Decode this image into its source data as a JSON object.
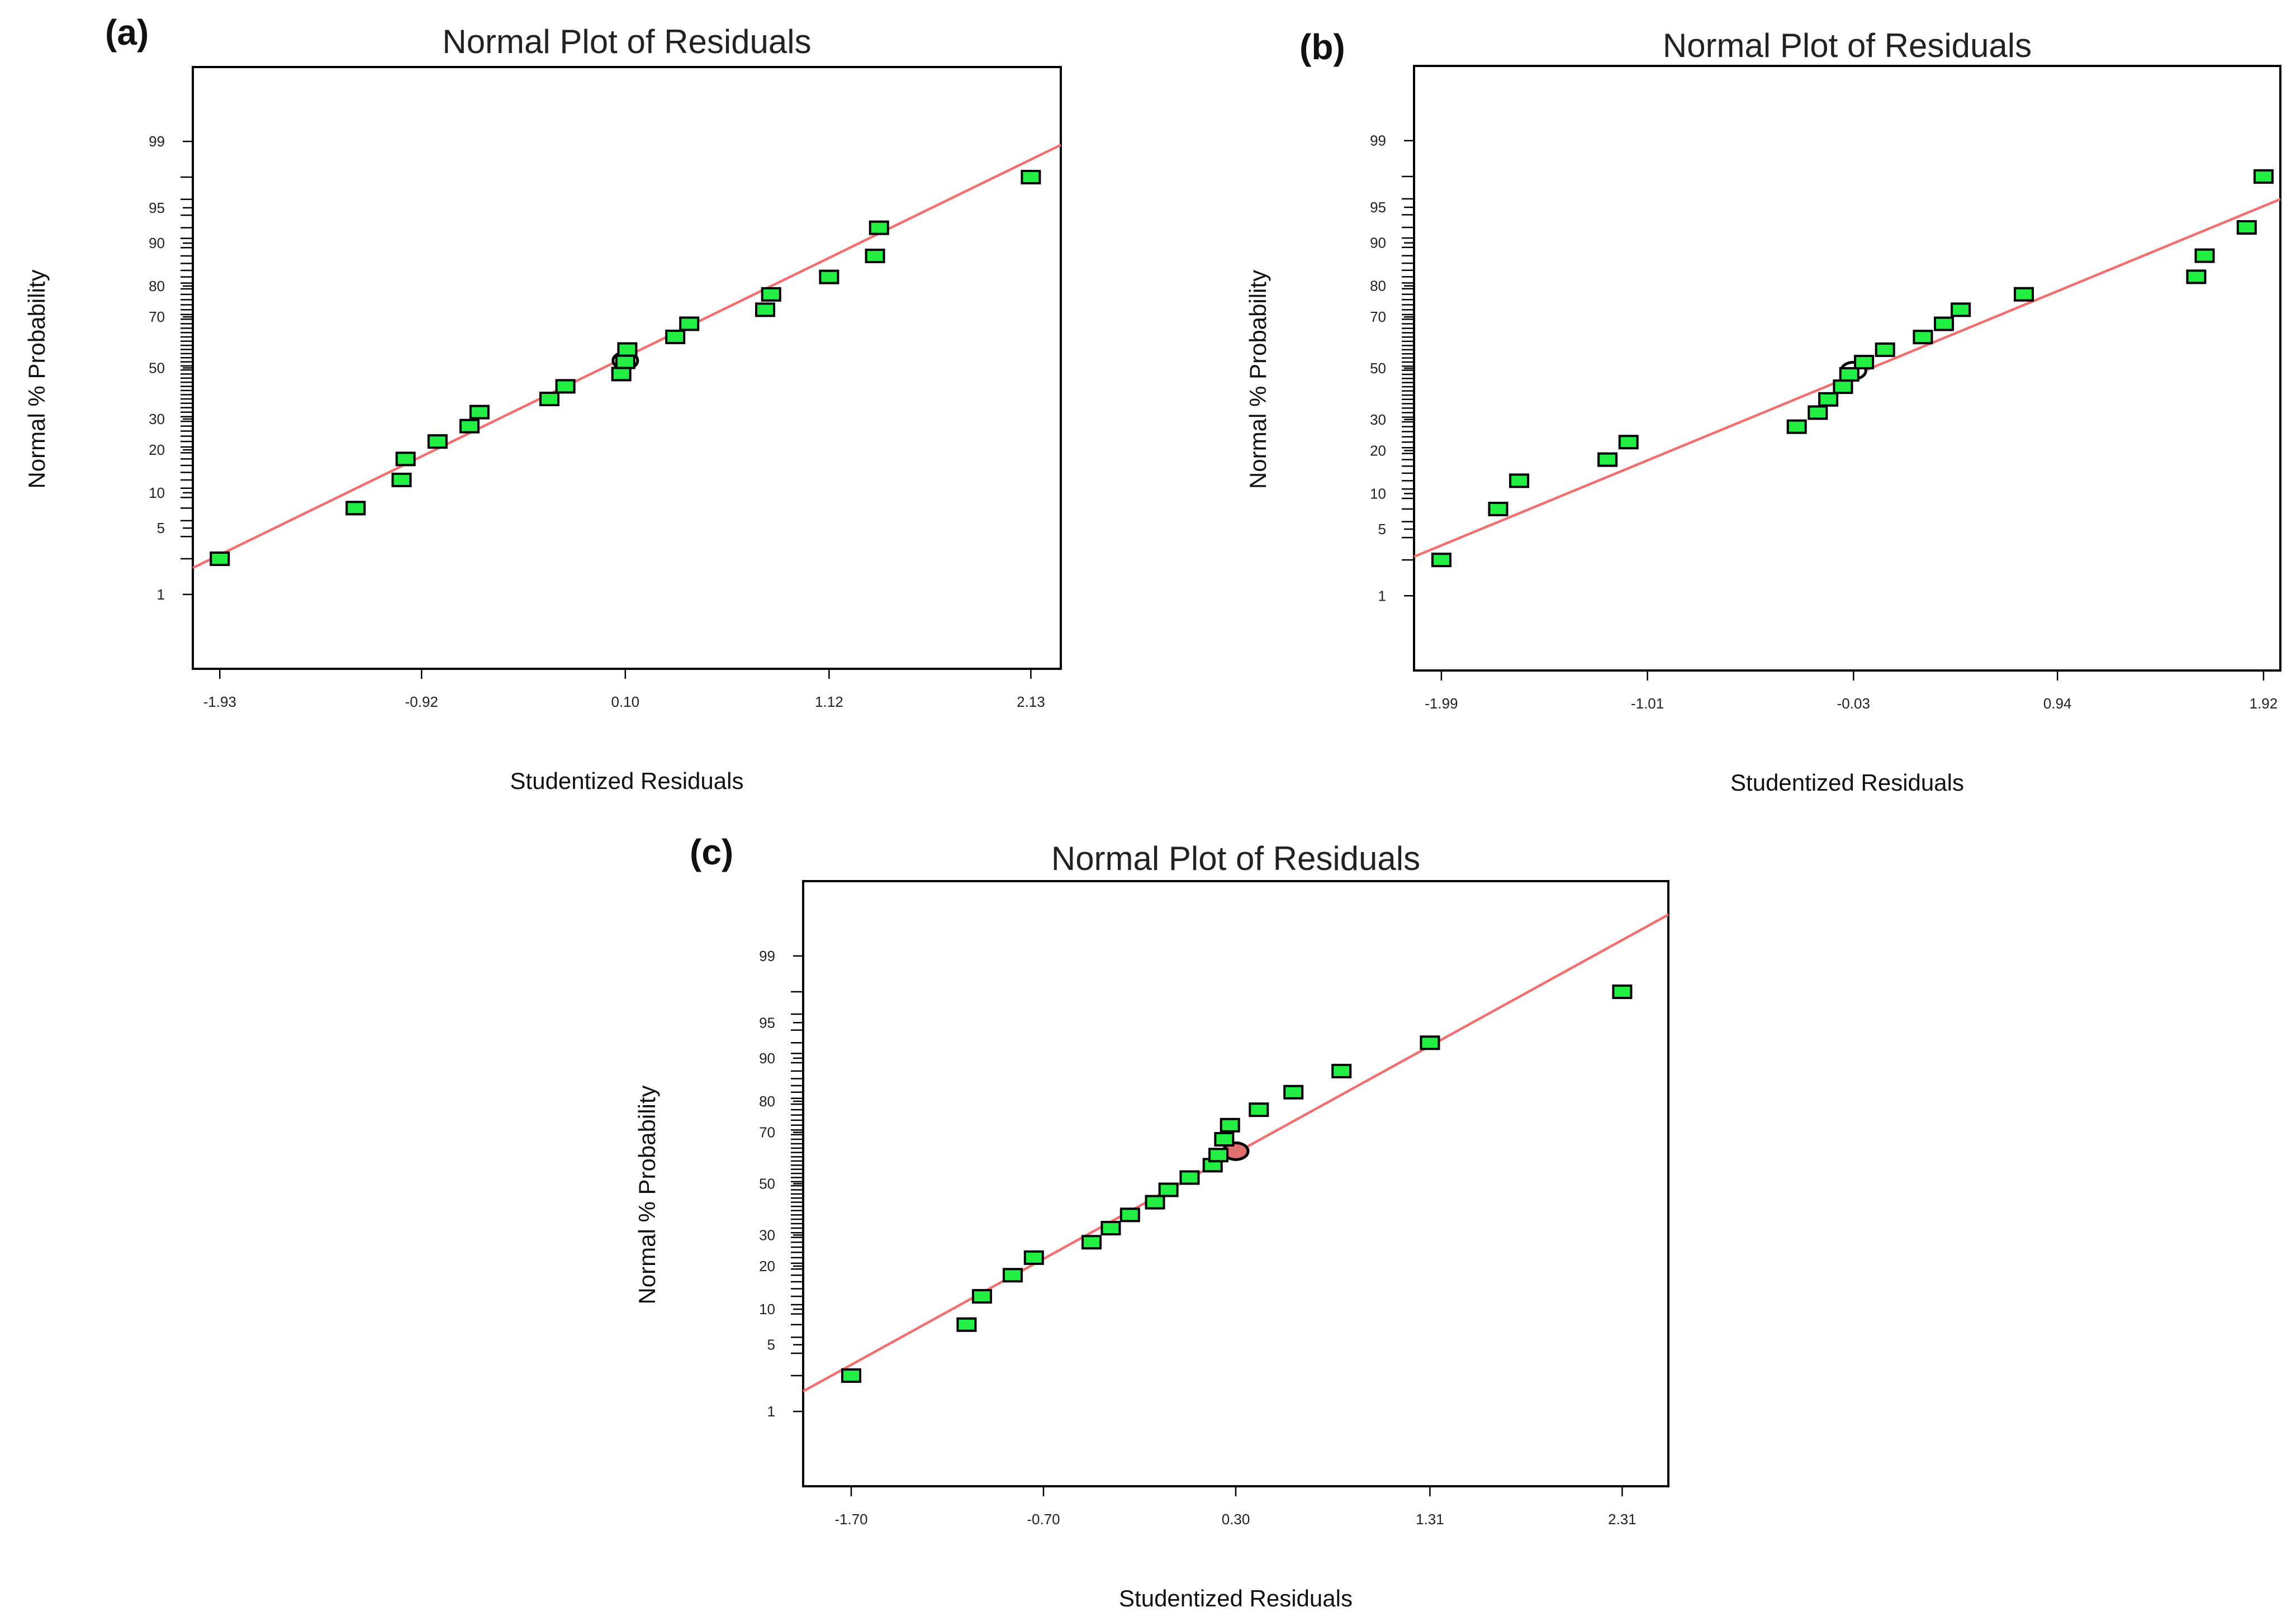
{
  "chart_data": [
    {
      "type": "scatter",
      "panel_label": "(a)",
      "title": "Normal Plot of Residuals",
      "xlabel": "Studentized Residuals",
      "ylabel": "Normal % Probability",
      "x_ticks": [
        "-1.93",
        "-0.92",
        "0.10",
        "1.12",
        "2.13"
      ],
      "x_tick_values": [
        -1.93,
        -0.92,
        0.1,
        1.12,
        2.13
      ],
      "xlim": [
        -2.065,
        2.28
      ],
      "y_ticks": [
        1,
        5,
        10,
        20,
        30,
        50,
        70,
        80,
        90,
        95,
        99
      ],
      "ylim_percent": [
        0.1,
        99.9
      ],
      "fit_line": [
        [
          -2.065,
          2.0
        ],
        [
          2.28,
          98.9
        ]
      ],
      "highlight": {
        "x": 0.1,
        "y": 53,
        "color": "#ffffff"
      },
      "points": [
        {
          "x": -1.93,
          "y": 2.5
        },
        {
          "x": -1.25,
          "y": 7.5
        },
        {
          "x": -1.02,
          "y": 12.5
        },
        {
          "x": -1.0,
          "y": 17.5
        },
        {
          "x": -0.84,
          "y": 22.5
        },
        {
          "x": -0.68,
          "y": 27.5
        },
        {
          "x": -0.63,
          "y": 32.5
        },
        {
          "x": -0.28,
          "y": 37.5
        },
        {
          "x": -0.2,
          "y": 42.5
        },
        {
          "x": 0.08,
          "y": 47.5
        },
        {
          "x": 0.1,
          "y": 52.5
        },
        {
          "x": 0.11,
          "y": 57.5
        },
        {
          "x": 0.35,
          "y": 62.5
        },
        {
          "x": 0.42,
          "y": 67.5
        },
        {
          "x": 0.8,
          "y": 72.5
        },
        {
          "x": 0.83,
          "y": 77.5
        },
        {
          "x": 1.12,
          "y": 82.5
        },
        {
          "x": 1.35,
          "y": 87.5
        },
        {
          "x": 1.37,
          "y": 92.5
        },
        {
          "x": 2.13,
          "y": 97.5
        }
      ]
    },
    {
      "type": "scatter",
      "panel_label": "(b)",
      "title": "Normal Plot of Residuals",
      "xlabel": "Studentized Residuals",
      "ylabel": "Normal % Probability",
      "x_ticks": [
        "-1.99",
        "-1.01",
        "-0.03",
        "0.94",
        "1.92"
      ],
      "x_tick_values": [
        -1.99,
        -1.01,
        -0.03,
        0.94,
        1.92
      ],
      "xlim": [
        -2.12,
        2.0
      ],
      "y_ticks": [
        1,
        5,
        10,
        20,
        30,
        50,
        70,
        80,
        90,
        95,
        99
      ],
      "ylim_percent": [
        0.1,
        99.9
      ],
      "fit_line": [
        [
          -2.12,
          2.7
        ],
        [
          2.0,
          95.8
        ]
      ],
      "highlight": {
        "x": -0.03,
        "y": 49,
        "color": "#ffffff"
      },
      "points": [
        {
          "x": -1.99,
          "y": 2.5
        },
        {
          "x": -1.72,
          "y": 7.5
        },
        {
          "x": -1.62,
          "y": 12.5
        },
        {
          "x": -1.2,
          "y": 17.5
        },
        {
          "x": -1.1,
          "y": 22.5
        },
        {
          "x": -0.3,
          "y": 27.5
        },
        {
          "x": -0.2,
          "y": 32.5
        },
        {
          "x": -0.15,
          "y": 37.5
        },
        {
          "x": -0.08,
          "y": 42.5
        },
        {
          "x": -0.05,
          "y": 47.5
        },
        {
          "x": 0.02,
          "y": 52.5
        },
        {
          "x": 0.12,
          "y": 57.5
        },
        {
          "x": 0.3,
          "y": 62.5
        },
        {
          "x": 0.4,
          "y": 67.5
        },
        {
          "x": 0.48,
          "y": 72.5
        },
        {
          "x": 0.78,
          "y": 77.5
        },
        {
          "x": 1.6,
          "y": 82.5
        },
        {
          "x": 1.64,
          "y": 87.5
        },
        {
          "x": 1.84,
          "y": 92.5
        },
        {
          "x": 1.92,
          "y": 97.5
        }
      ]
    },
    {
      "type": "scatter",
      "panel_label": "(c)",
      "title": "Normal Plot of Residuals",
      "xlabel": "Studentized Residuals",
      "ylabel": "Normal % Probability",
      "x_ticks": [
        "-1.70",
        "-0.70",
        "0.30",
        "1.31",
        "2.31"
      ],
      "x_tick_values": [
        -1.7,
        -0.7,
        0.3,
        1.31,
        2.31
      ],
      "xlim": [
        -1.95,
        2.55
      ],
      "y_ticks": [
        1,
        5,
        10,
        20,
        30,
        50,
        70,
        80,
        90,
        95,
        99
      ],
      "ylim_percent": [
        0.1,
        99.9
      ],
      "fit_line": [
        [
          -1.95,
          1.7
        ],
        [
          2.55,
          99.7
        ]
      ],
      "highlight": {
        "x": 0.3,
        "y": 63,
        "color": "#e07070"
      },
      "points": [
        {
          "x": -1.7,
          "y": 2.5
        },
        {
          "x": -1.1,
          "y": 7.5
        },
        {
          "x": -1.02,
          "y": 12.5
        },
        {
          "x": -0.86,
          "y": 17.5
        },
        {
          "x": -0.75,
          "y": 22.5
        },
        {
          "x": -0.45,
          "y": 27.5
        },
        {
          "x": -0.35,
          "y": 32.5
        },
        {
          "x": -0.25,
          "y": 37.5
        },
        {
          "x": -0.12,
          "y": 42.5
        },
        {
          "x": -0.05,
          "y": 47.5
        },
        {
          "x": 0.06,
          "y": 52.5
        },
        {
          "x": 0.18,
          "y": 57.5
        },
        {
          "x": 0.21,
          "y": 61.5
        },
        {
          "x": 0.24,
          "y": 67.5
        },
        {
          "x": 0.27,
          "y": 72.5
        },
        {
          "x": 0.42,
          "y": 77.5
        },
        {
          "x": 0.6,
          "y": 82.5
        },
        {
          "x": 0.85,
          "y": 87.5
        },
        {
          "x": 1.31,
          "y": 92.5
        },
        {
          "x": 2.31,
          "y": 97.5
        }
      ]
    }
  ]
}
